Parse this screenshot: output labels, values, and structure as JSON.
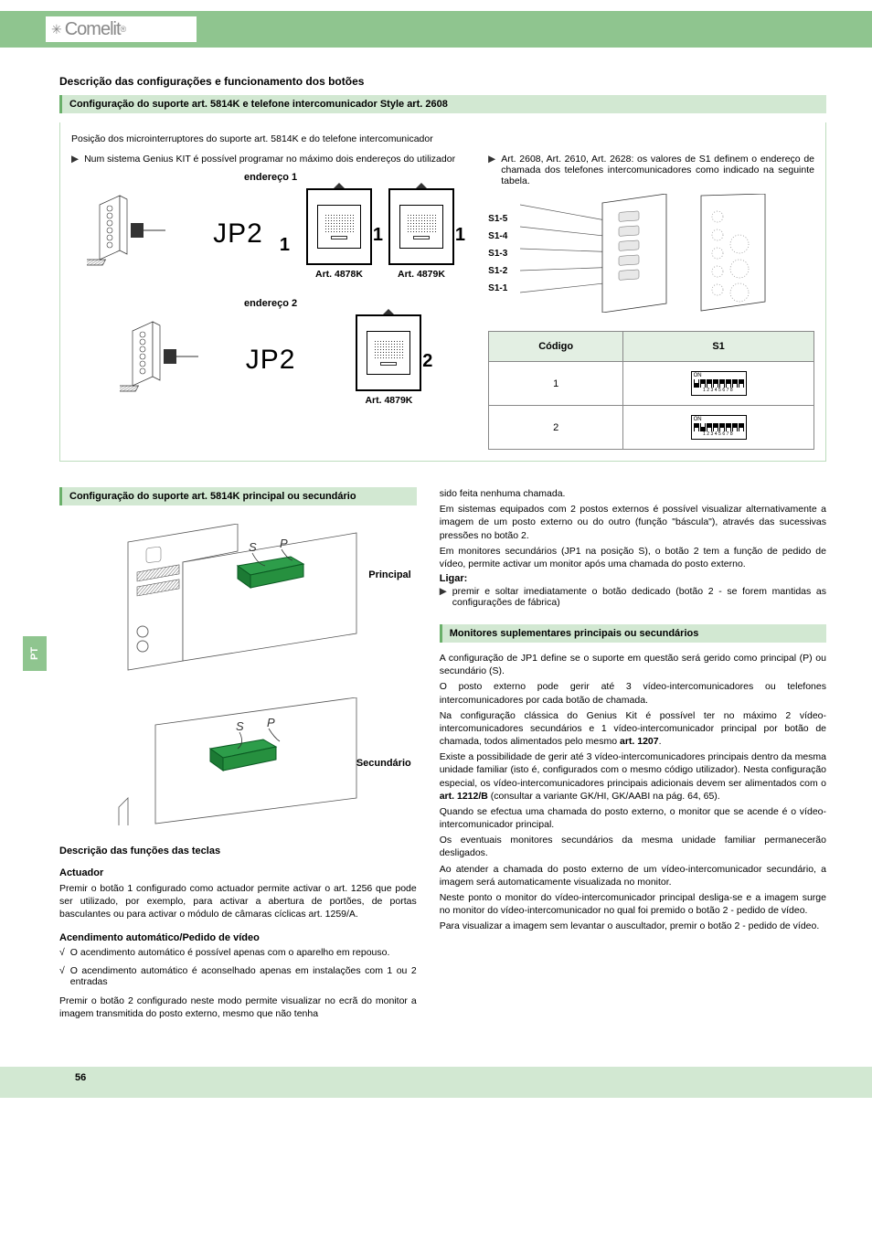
{
  "logo_text": "Comelit",
  "side_tab": "PT",
  "h1": "Descrição das configurações e funcionamento dos botões",
  "bar1": "Configuração do suporte art. 5814K e telefone intercomunicador Style art. 2608",
  "intro": "Posição dos microinterruptores do suporte art. 5814K e do telefone intercomunicador",
  "leftNote": "Num sistema Genius KIT é possível programar no máximo dois endereços do utilizador",
  "rightNote": "Art. 2608, Art. 2610, Art. 2628: os valores de S1 definem o endereço de chamada dos telefones intercomunicadores como indicado na seguinte tabela.",
  "addr1": "endereço 1",
  "addr2": "endereço 2",
  "jp2": "JP2",
  "art4878": "Art. 4878K",
  "art4879": "Art. 4879K",
  "num1": "1",
  "num2": "2",
  "swLabels": [
    "S1-5",
    "S1-4",
    "S1-3",
    "S1-2",
    "S1-1"
  ],
  "table": {
    "h1": "Código",
    "h2": "S1",
    "rows": [
      {
        "c": "1",
        "dip": [
          1,
          0,
          0,
          0,
          0,
          0,
          0,
          0
        ]
      },
      {
        "c": "2",
        "dip": [
          0,
          1,
          0,
          0,
          0,
          0,
          0,
          0
        ]
      }
    ],
    "dipOn": "ON",
    "dipNums": "12345678"
  },
  "bar2": "Configuração do suporte art. 5814K principal ou secundário",
  "labelPrincipal": "Principal",
  "labelSecundario": "Secundário",
  "h_funcoes": "Descrição das funções das teclas",
  "h_actuador": "Actuador",
  "p_actuador": "Premir o botão 1 configurado como actuador permite activar o art. 1256 que pode ser utilizado, por exemplo, para activar a abertura de portões, de portas basculantes ou para activar o módulo de câmaras cíclicas art. 1259/A.",
  "h_acend": "Acendimento automático/Pedido de vídeo",
  "chk1": "O acendimento automático é possível apenas com o aparelho em repouso.",
  "chk2": "O acendimento automático é aconselhado apenas em instalações com 1 ou 2 entradas",
  "p_acend2": "Premir o botão 2 configurado neste modo permite visualizar no ecrã do monitor a imagem transmitida do posto externo, mesmo que não tenha",
  "r_p1": "sido feita nenhuma chamada.",
  "r_p2": "Em sistemas equipados com 2 postos externos é possível visualizar alternativamente a imagem de um posto externo ou do outro (função \"báscula\"), através das sucessivas pressões no botão 2.",
  "r_p3": "Em monitores secundários (JP1 na posição S), o botão 2 tem a função de pedido de vídeo, permite activar um monitor após uma chamada do posto externo.",
  "h_ligar": "Ligar:",
  "r_ligar": "premir e soltar imediatamente o botão dedicado (botão 2 - se forem mantidas as configurações de fábrica)",
  "bar3": "Monitores suplementares principais ou secundários",
  "m_p1": "A configuração de JP1 define se o suporte em questão será gerido como principal (P) ou secundário (S).",
  "m_p2": "O posto externo pode gerir até 3 vídeo-intercomunicadores ou telefones intercomunicadores por cada botão de chamada.",
  "m_p3_a": "Na configuração clássica do Genius Kit é possível ter no máximo 2 vídeo-intercomunicadores secundários e 1 vídeo-intercomunicador principal por botão de chamada, todos alimentados pelo mesmo ",
  "m_p3_b": "art. 1207",
  "m_p3_c": ".",
  "m_p4_a": "Existe a possibilidade de gerir até 3 vídeo-intercomunicadores principais dentro da mesma unidade familiar (isto é, configurados com o mesmo código utilizador). Nesta configuração especial, os vídeo-intercomunicadores principais adicionais devem ser alimentados com o ",
  "m_p4_b": "art. 1212/B",
  "m_p4_c": " (consultar a variante GK/HI, GK/AABI na pág. 64, 65).",
  "m_p5": "Quando se efectua uma chamada do posto externo, o monitor que se acende é o vídeo-intercomunicador principal.",
  "m_p6": "Os eventuais monitores secundários da mesma unidade familiar permanecerão desligados.",
  "m_p7": "Ao atender a chamada do posto externo de um vídeo-intercomunicador secundário, a imagem será automaticamente visualizada no monitor.",
  "m_p8": "Neste ponto o monitor do vídeo-intercomunicador principal desliga-se e a imagem surge no monitor do vídeo-intercomunicador no qual foi premido o botão 2 - pedido de vídeo.",
  "m_p9": "Para visualizar a imagem sem levantar o auscultador, premir o botão 2 - pedido de vídeo.",
  "pageNum": "56",
  "colors": {
    "green": "#8fc58f",
    "lightGreen": "#d2e8d2",
    "darkGreen": "#2d7a2d"
  },
  "letters": {
    "s": "S",
    "p": "P"
  }
}
